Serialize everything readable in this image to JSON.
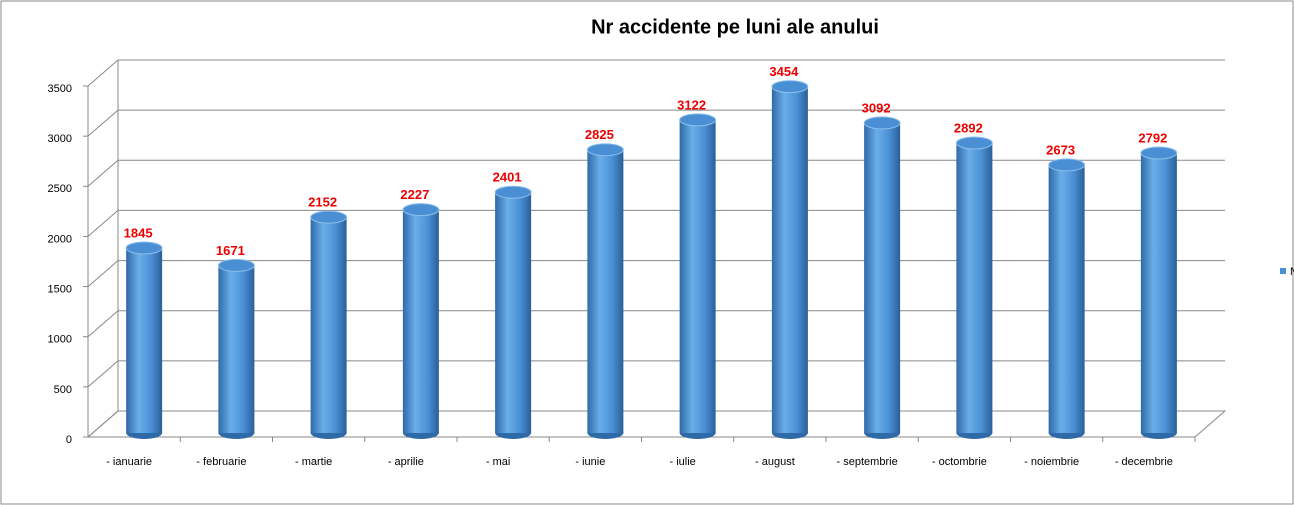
{
  "chart_data": {
    "type": "bar",
    "title": "Nr accidente pe luni ale anului",
    "categories": [
      "- ianuarie",
      "- februarie",
      "- martie",
      "- aprilie",
      "- mai",
      "- iunie",
      "- iulie",
      "- august",
      "- septembrie",
      "- octombrie",
      "- noiembrie",
      "- decembrie"
    ],
    "series": [
      {
        "name": "N",
        "color": "#4a8fd4",
        "values": [
          1845,
          1671,
          2152,
          2227,
          2401,
          2825,
          3122,
          3454,
          3092,
          2892,
          2673,
          2792
        ]
      }
    ],
    "ylim": [
      0,
      3500
    ],
    "yticks": [
      0,
      500,
      1000,
      1500,
      2000,
      2500,
      3000,
      3500
    ],
    "grid": true,
    "legend": "right"
  }
}
